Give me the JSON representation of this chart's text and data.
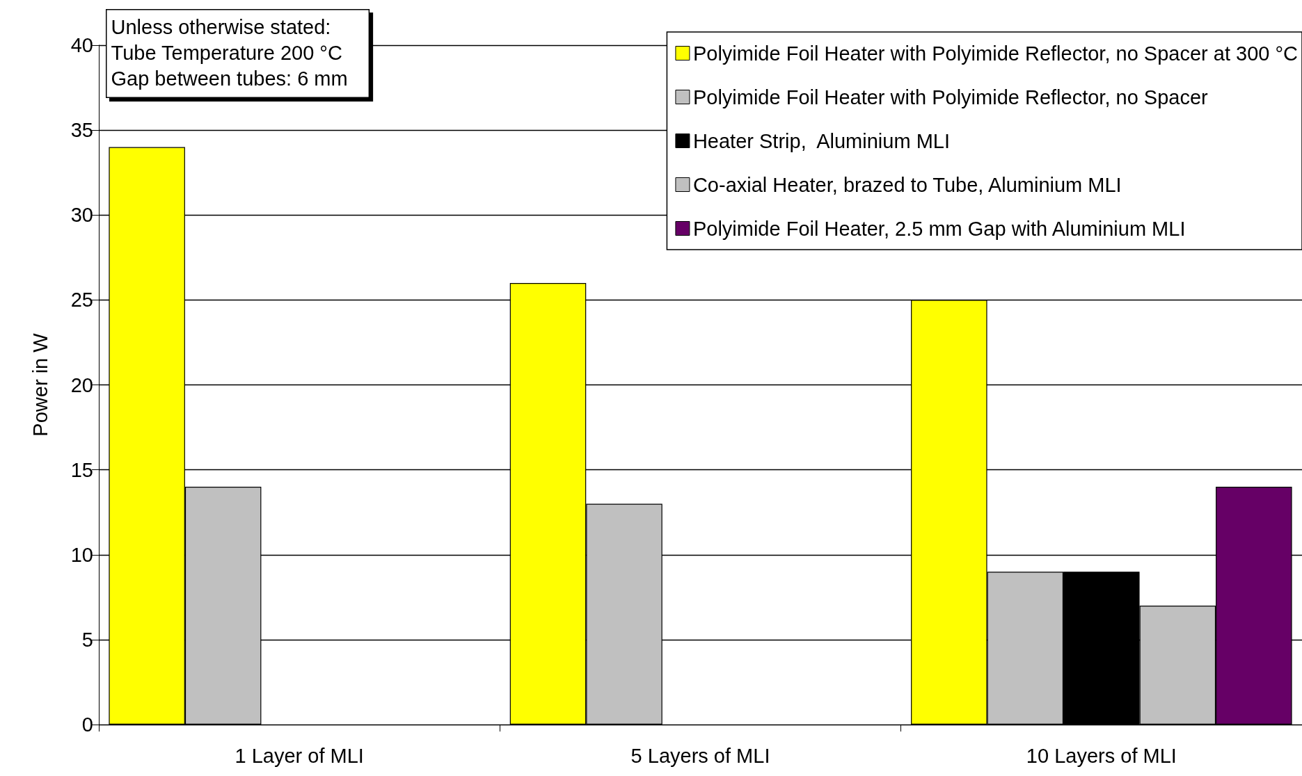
{
  "chart_data": {
    "type": "bar",
    "ylabel": "Power in W",
    "categories": [
      "1 Layer of MLI",
      "5 Layers of MLI",
      "10 Layers of MLI"
    ],
    "series": [
      {
        "name": "Polyimide Foil Heater with Polyimide Reflector, no Spacer at 300 °C",
        "color": "#ffff00",
        "values": [
          34,
          26,
          25
        ]
      },
      {
        "name": "Polyimide Foil Heater with Polyimide Reflector, no Spacer",
        "color": "#c0c0c0",
        "values": [
          14,
          13,
          9
        ]
      },
      {
        "name": "Heater Strip,  Aluminium MLI",
        "color": "#000000",
        "values": [
          null,
          null,
          9
        ]
      },
      {
        "name": "Co-axial Heater, brazed to Tube, Aluminium MLI",
        "color": "#c0c0c0",
        "values": [
          null,
          null,
          7
        ]
      },
      {
        "name": "Polyimide Foil Heater, 2.5 mm Gap with Aluminium MLI",
        "color": "#660066",
        "values": [
          null,
          null,
          14
        ]
      }
    ],
    "ylim": [
      0,
      40
    ],
    "yticks": [
      0,
      5,
      10,
      15,
      20,
      25,
      30,
      35,
      40
    ],
    "grid": "y",
    "legend": "top right",
    "annotations": [
      "Unless otherwise stated:\nTube Temperature 200 °C\nGap between tubes: 6 mm"
    ]
  }
}
